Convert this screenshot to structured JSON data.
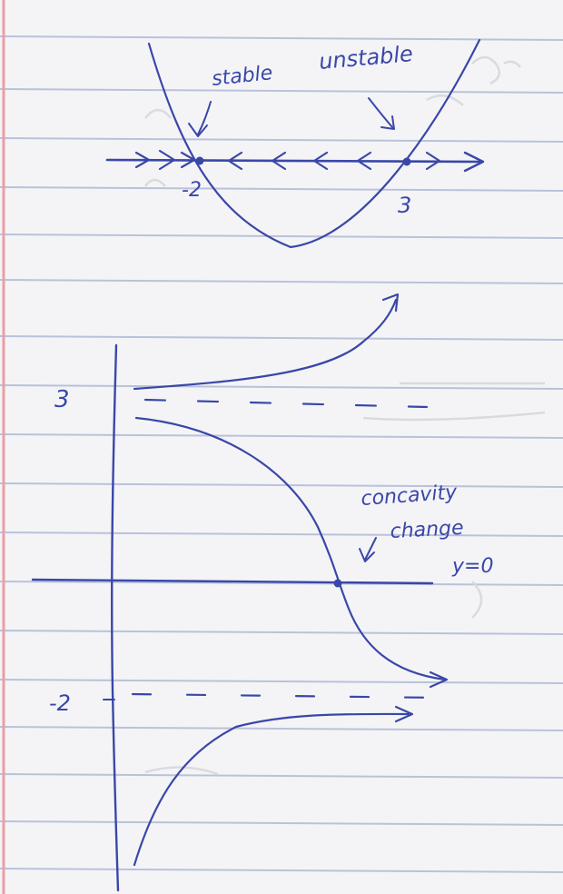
{
  "ink_color": "#3a47a8",
  "paper": {
    "background": "#f4f4f6",
    "rule_color": "#b9c2da",
    "margin_color": "#e7a0a8"
  },
  "top_sketch": {
    "label_stable": "stable",
    "label_unstable": "unstable",
    "tick_left": "-2",
    "tick_right": "3"
  },
  "bottom_sketch": {
    "level_upper": "3",
    "level_lower": "-2",
    "annotation_line1": "concavity",
    "annotation_line2": "change",
    "annotation_line3": "y=0"
  },
  "faint_showthrough": [
    "(t) &",
    "ℓ",
    "2π",
    "bl"
  ]
}
